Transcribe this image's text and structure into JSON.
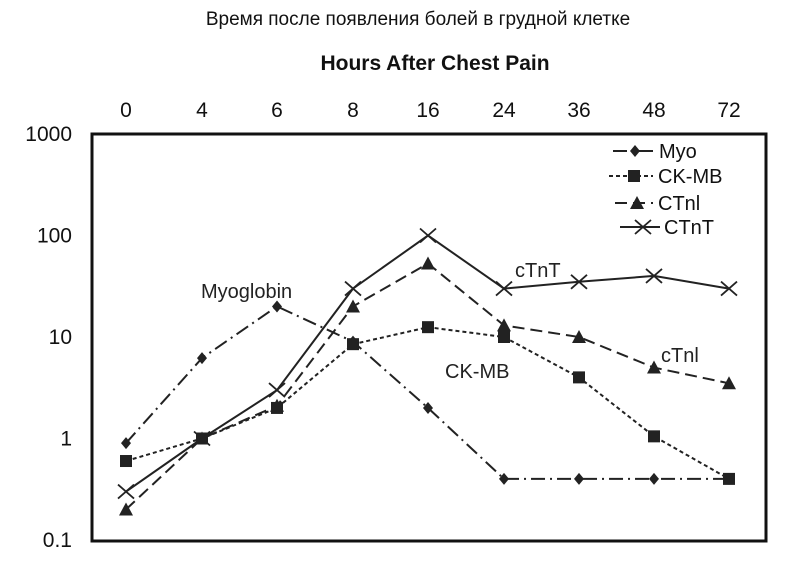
{
  "chart_data": {
    "type": "line",
    "title": "Hours After Chest Pain",
    "subtitle": "Время после появления болей в грудной клетке",
    "y_scale": "log",
    "ylim": [
      0.1,
      1000
    ],
    "x_axis_position": "top",
    "categories": [
      "0",
      "4",
      "6",
      "8",
      "16",
      "24",
      "36",
      "48",
      "72"
    ],
    "yticks": [
      "1000",
      "100",
      "10",
      "1",
      "0.1"
    ],
    "ytick_values": [
      1000,
      100,
      10,
      1,
      0.1
    ],
    "legend": {
      "position": "top-right"
    },
    "series": [
      {
        "name": "Myo",
        "key": "myo",
        "color": "#222222",
        "marker": "diamond",
        "line": "dash-dot",
        "values": [
          0.9,
          6.2,
          20,
          9,
          2,
          0.4,
          0.4,
          0.4,
          0.4
        ]
      },
      {
        "name": "CK-MB",
        "key": "ckmb",
        "color": "#222222",
        "marker": "square",
        "line": "dotted",
        "values": [
          0.6,
          1.0,
          2.0,
          8.5,
          12.5,
          10,
          4,
          1.05,
          0.4
        ]
      },
      {
        "name": "CTnl",
        "key": "ctni",
        "color": "#222222",
        "marker": "triangle",
        "line": "dashed",
        "values": [
          0.2,
          1.0,
          2.1,
          20,
          53,
          13,
          10,
          5,
          3.5
        ]
      },
      {
        "name": "CTnT",
        "key": "ctnt",
        "color": "#222222",
        "marker": "x",
        "line": "solid",
        "values": [
          0.3,
          1.0,
          3.0,
          30,
          100,
          30,
          35,
          40,
          30
        ]
      }
    ],
    "annotations": [
      {
        "key": "myo",
        "text": "Myoglobin"
      },
      {
        "key": "ckmb",
        "text": "CK-MB"
      },
      {
        "key": "ctnt",
        "text": "cTnT"
      },
      {
        "key": "ctni",
        "text": "cTnl"
      }
    ]
  }
}
